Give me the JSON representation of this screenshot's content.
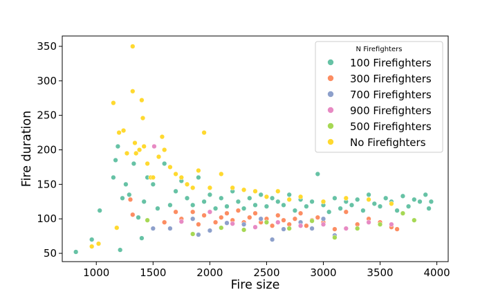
{
  "chart_data": {
    "type": "scatter",
    "xlabel": "Fire size",
    "ylabel": "Fire duration",
    "xlim": [
      700,
      4100
    ],
    "ylim": [
      38,
      365
    ],
    "xticks": [
      1000,
      1500,
      2000,
      2500,
      3000,
      3500,
      4000
    ],
    "yticks": [
      50,
      100,
      150,
      200,
      250,
      300,
      350
    ],
    "grid": false,
    "legend": {
      "title": "N Firefighters",
      "placement": "top-right",
      "entries": [
        {
          "name": "100 Firefighters",
          "color": "#66c2a5"
        },
        {
          "name": "300 Firefighters",
          "color": "#fc8d62"
        },
        {
          "name": "700 Firefighters",
          "color": "#8da0cb"
        },
        {
          "name": "900 Firefighters",
          "color": "#e78ac3"
        },
        {
          "name": "500 Firefighters",
          "color": "#a6d854"
        },
        {
          "name": "No Firefighters",
          "color": "#ffd92f"
        }
      ]
    },
    "series": [
      {
        "name": "100 Firefighters",
        "color": "#66c2a5",
        "points": [
          [
            820,
            52
          ],
          [
            960,
            70
          ],
          [
            1030,
            112
          ],
          [
            1150,
            160
          ],
          [
            1170,
            185
          ],
          [
            1190,
            205
          ],
          [
            1210,
            55
          ],
          [
            1230,
            130
          ],
          [
            1260,
            150
          ],
          [
            1290,
            135
          ],
          [
            1330,
            180
          ],
          [
            1370,
            102
          ],
          [
            1400,
            72
          ],
          [
            1420,
            125
          ],
          [
            1450,
            160
          ],
          [
            1500,
            150
          ],
          [
            1540,
            115
          ],
          [
            1600,
            180
          ],
          [
            1650,
            120
          ],
          [
            1700,
            140
          ],
          [
            1750,
            155
          ],
          [
            1800,
            130
          ],
          [
            1850,
            120
          ],
          [
            1900,
            160
          ],
          [
            1950,
            125
          ],
          [
            2000,
            135
          ],
          [
            2050,
            115
          ],
          [
            2100,
            130
          ],
          [
            2150,
            118
          ],
          [
            2200,
            140
          ],
          [
            2250,
            125
          ],
          [
            2300,
            115
          ],
          [
            2350,
            130
          ],
          [
            2400,
            120
          ],
          [
            2450,
            135
          ],
          [
            2500,
            118
          ],
          [
            2550,
            130
          ],
          [
            2600,
            125
          ],
          [
            2650,
            120
          ],
          [
            2700,
            135
          ],
          [
            2750,
            112
          ],
          [
            2800,
            128
          ],
          [
            2850,
            118
          ],
          [
            2900,
            125
          ],
          [
            2950,
            165
          ],
          [
            3000,
            120
          ],
          [
            3050,
            110
          ],
          [
            3100,
            130
          ],
          [
            3150,
            115
          ],
          [
            3200,
            125
          ],
          [
            3250,
            120
          ],
          [
            3300,
            128
          ],
          [
            3350,
            112
          ],
          [
            3400,
            135
          ],
          [
            3450,
            122
          ],
          [
            3500,
            118
          ],
          [
            3550,
            130
          ],
          [
            3600,
            125
          ],
          [
            3650,
            112
          ],
          [
            3700,
            133
          ],
          [
            3750,
            118
          ],
          [
            3800,
            128
          ],
          [
            3850,
            125
          ],
          [
            3900,
            135
          ],
          [
            3930,
            115
          ],
          [
            3950,
            125
          ]
        ]
      },
      {
        "name": "300 Firefighters",
        "color": "#fc8d62",
        "points": [
          [
            1300,
            128
          ],
          [
            1320,
            106
          ],
          [
            1600,
            95
          ],
          [
            1700,
            110
          ],
          [
            1750,
            100
          ],
          [
            1850,
            110
          ],
          [
            1900,
            92
          ],
          [
            1950,
            105
          ],
          [
            2000,
            110
          ],
          [
            2050,
            95
          ],
          [
            2100,
            102
          ],
          [
            2150,
            108
          ],
          [
            2200,
            98
          ],
          [
            2250,
            112
          ],
          [
            2300,
            95
          ],
          [
            2350,
            102
          ],
          [
            2400,
            108
          ],
          [
            2450,
            95
          ],
          [
            2500,
            100
          ],
          [
            2550,
            90
          ],
          [
            2600,
            105
          ],
          [
            2650,
            98
          ],
          [
            2700,
            92
          ],
          [
            2750,
            100
          ],
          [
            2800,
            108
          ],
          [
            2850,
            90
          ],
          [
            2900,
            98
          ],
          [
            2950,
            102
          ],
          [
            3000,
            95
          ],
          [
            3100,
            85
          ],
          [
            3200,
            110
          ],
          [
            3300,
            92
          ],
          [
            3400,
            100
          ],
          [
            3500,
            95
          ],
          [
            3600,
            88
          ],
          [
            3650,
            85
          ]
        ]
      },
      {
        "name": "700 Firefighters",
        "color": "#8da0cb",
        "points": [
          [
            1500,
            86
          ],
          [
            1650,
            86
          ],
          [
            1850,
            100
          ],
          [
            1900,
            77
          ],
          [
            2000,
            83
          ],
          [
            2150,
            94
          ],
          [
            2300,
            92
          ],
          [
            2450,
            100
          ],
          [
            2550,
            70
          ],
          [
            2650,
            85
          ],
          [
            2800,
            95
          ],
          [
            2900,
            86
          ],
          [
            3000,
            100
          ],
          [
            3100,
            76
          ]
        ]
      },
      {
        "name": "900 Firefighters",
        "color": "#e78ac3",
        "points": [
          [
            1510,
            205
          ],
          [
            1750,
            96
          ],
          [
            2000,
            110
          ],
          [
            2200,
            93
          ],
          [
            2400,
            88
          ],
          [
            2600,
            95
          ],
          [
            2800,
            90
          ],
          [
            3000,
            92
          ],
          [
            3200,
            86
          ],
          [
            3400,
            95
          ],
          [
            3600,
            92
          ]
        ]
      },
      {
        "name": "500 Firefighters",
        "color": "#a6d854",
        "points": [
          [
            1450,
            98
          ],
          [
            1850,
            78
          ],
          [
            2100,
            87
          ],
          [
            2300,
            84
          ],
          [
            2500,
            95
          ],
          [
            2700,
            86
          ],
          [
            2900,
            97
          ],
          [
            3100,
            73
          ],
          [
            3300,
            86
          ],
          [
            3500,
            92
          ],
          [
            3700,
            108
          ],
          [
            3800,
            98
          ]
        ]
      },
      {
        "name": "No Firefighters",
        "color": "#ffd92f",
        "points": [
          [
            960,
            60
          ],
          [
            1020,
            64
          ],
          [
            1150,
            268
          ],
          [
            1180,
            87
          ],
          [
            1200,
            225
          ],
          [
            1240,
            228
          ],
          [
            1270,
            195
          ],
          [
            1320,
            350
          ],
          [
            1320,
            285
          ],
          [
            1340,
            210
          ],
          [
            1350,
            195
          ],
          [
            1380,
            200
          ],
          [
            1400,
            272
          ],
          [
            1410,
            246
          ],
          [
            1420,
            205
          ],
          [
            1450,
            180
          ],
          [
            1480,
            160
          ],
          [
            1500,
            160
          ],
          [
            1550,
            190
          ],
          [
            1580,
            219
          ],
          [
            1600,
            200
          ],
          [
            1650,
            175
          ],
          [
            1700,
            165
          ],
          [
            1750,
            160
          ],
          [
            1800,
            150
          ],
          [
            1850,
            145
          ],
          [
            1900,
            170
          ],
          [
            1950,
            225
          ],
          [
            2000,
            145
          ],
          [
            2100,
            165
          ],
          [
            2200,
            145
          ],
          [
            2300,
            142
          ],
          [
            2400,
            140
          ],
          [
            2500,
            132
          ],
          [
            2600,
            140
          ],
          [
            2700,
            128
          ],
          [
            2800,
            132
          ],
          [
            3000,
            125
          ],
          [
            3200,
            130
          ],
          [
            3400,
            128
          ],
          [
            3600,
            122
          ]
        ]
      }
    ]
  }
}
